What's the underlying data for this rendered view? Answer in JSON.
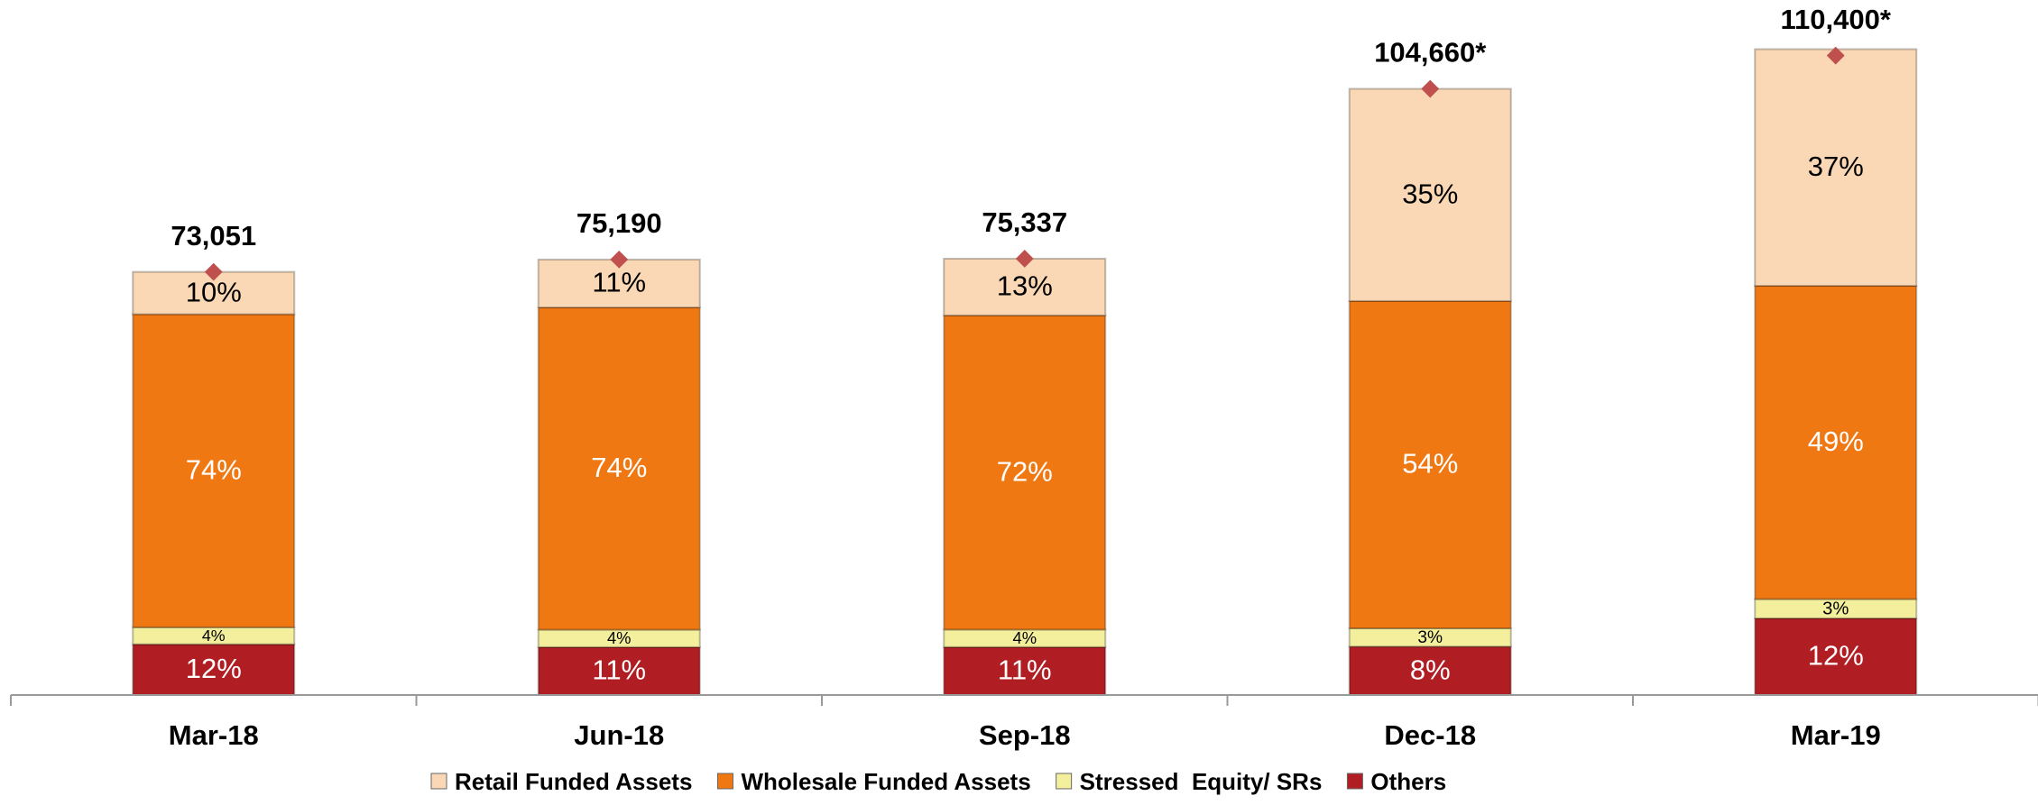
{
  "chart_data": {
    "type": "bar",
    "categories": [
      "Mar-18",
      "Jun-18",
      "Sep-18",
      "Dec-18",
      "Mar-19"
    ],
    "totals": {
      "values": [
        73051,
        75190,
        75337,
        104660,
        110400
      ],
      "value_labels": [
        "73,051",
        "75,190",
        "75,337",
        "104,660*",
        "110,400*"
      ],
      "color": "#c0504d"
    },
    "series": [
      {
        "name": "Others",
        "color": "#b01e23",
        "text_color": "#ffffff",
        "values": [
          12,
          11,
          11,
          8,
          12
        ],
        "value_labels": [
          "12%",
          "11%",
          "11%",
          "8%",
          "12%"
        ]
      },
      {
        "name": "Stressed  Equity/ SRs",
        "color": "#f4ef9c",
        "text_color": "#000000",
        "values": [
          4,
          4,
          4,
          3,
          3
        ],
        "value_labels": [
          "4%",
          "4%",
          "4%",
          "3%",
          "3%"
        ]
      },
      {
        "name": "Wholesale Funded Assets",
        "color": "#f07813",
        "text_color": "#ffffff",
        "values": [
          74,
          74,
          72,
          54,
          49
        ],
        "value_labels": [
          "74%",
          "74%",
          "72%",
          "54%",
          "49%"
        ]
      },
      {
        "name": "Retail Funded Assets",
        "color": "#fbd8b5",
        "text_color": "#000000",
        "values": [
          10,
          11,
          13,
          35,
          37
        ],
        "value_labels": [
          "10%",
          "11%",
          "13%",
          "35%",
          "37%"
        ]
      }
    ],
    "ylim": [
      0,
      120000
    ]
  }
}
